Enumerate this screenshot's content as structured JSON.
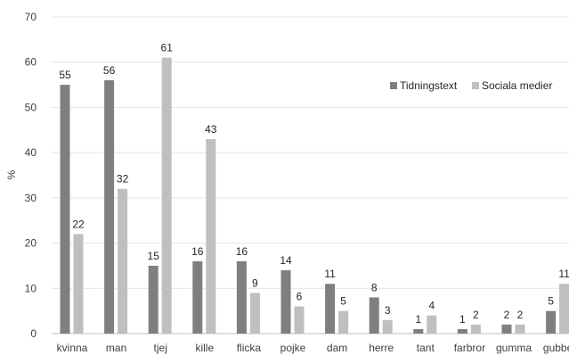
{
  "chart_data": {
    "type": "bar",
    "title": "",
    "xlabel": "",
    "ylabel": "%",
    "ylim": [
      0,
      70
    ],
    "yticks": [
      0,
      10,
      20,
      30,
      40,
      50,
      60,
      70
    ],
    "grid": true,
    "legend_position": "top-right",
    "categories": [
      "kvinna",
      "man",
      "tjej",
      "kille",
      "flicka",
      "pojke",
      "dam",
      "herre",
      "tant",
      "farbror",
      "gumma",
      "gubbe"
    ],
    "series": [
      {
        "name": "Tidningstext",
        "color": "#7f7f7f",
        "values": [
          55,
          56,
          15,
          16,
          16,
          14,
          11,
          8,
          1,
          1,
          2,
          5
        ]
      },
      {
        "name": "Sociala medier",
        "color": "#bfbfbf",
        "values": [
          22,
          32,
          61,
          43,
          9,
          6,
          5,
          3,
          4,
          2,
          2,
          11
        ]
      }
    ]
  }
}
